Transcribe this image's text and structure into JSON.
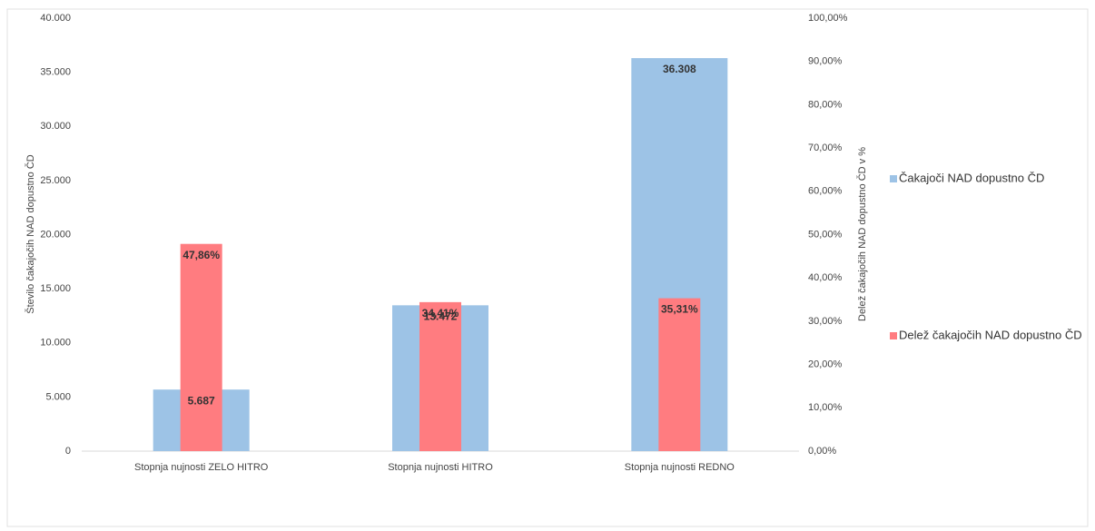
{
  "chart_data": {
    "type": "bar",
    "categories": [
      "Stopnja nujnosti ZELO HITRO",
      "Stopnja nujnosti HITRO",
      "Stopnja nujnosti REDNO"
    ],
    "y_label": "Število čakajočih NAD dopustno ČD",
    "y2_label": "Delež čakajočih NAD dopustno ČD v %",
    "series": [
      {
        "name": "Čakajoči NAD dopustno ČD",
        "color": "#9dc3e6",
        "values": [
          5687,
          13472,
          36308
        ],
        "value_labels": [
          "5.687",
          "13.472",
          "36.308"
        ]
      },
      {
        "name": "Delež čakajočih NAD dopustno ČD",
        "color": "#ff7c80",
        "axis": "y2",
        "values": [
          47.86,
          34.41,
          35.31
        ],
        "value_labels": [
          "47,86%",
          "34,41%",
          "35,31%"
        ]
      }
    ],
    "ylim": [
      0,
      40000
    ],
    "yticks": [
      0,
      {
        "value": 5000,
        "label": "5.000"
      },
      {
        "value": 10000,
        "label": "10.000"
      },
      {
        "value": 15000,
        "label": "15.000"
      },
      {
        "value": 20000,
        "label": "20.000"
      },
      {
        "value": 25000,
        "label": "25.000"
      },
      {
        "value": 30000,
        "label": "30.000"
      },
      {
        "value": 35000,
        "label": "35.000"
      },
      {
        "value": 40000,
        "label": "40.000"
      }
    ],
    "y2lim": [
      0,
      100
    ],
    "y2ticks": [
      {
        "value": 0,
        "label": "0,00%"
      },
      {
        "value": 10,
        "label": "10,00%"
      },
      {
        "value": 20,
        "label": "20,00%"
      },
      {
        "value": 30,
        "label": "30,00%"
      },
      {
        "value": 40,
        "label": "40,00%"
      },
      {
        "value": 50,
        "label": "50,00%"
      },
      {
        "value": 60,
        "label": "60,00%"
      },
      {
        "value": 70,
        "label": "70,00%"
      },
      {
        "value": 80,
        "label": "80,00%"
      },
      {
        "value": 90,
        "label": "90,00%"
      },
      {
        "value": 100,
        "label": "100,00%"
      }
    ],
    "legend": "right"
  }
}
